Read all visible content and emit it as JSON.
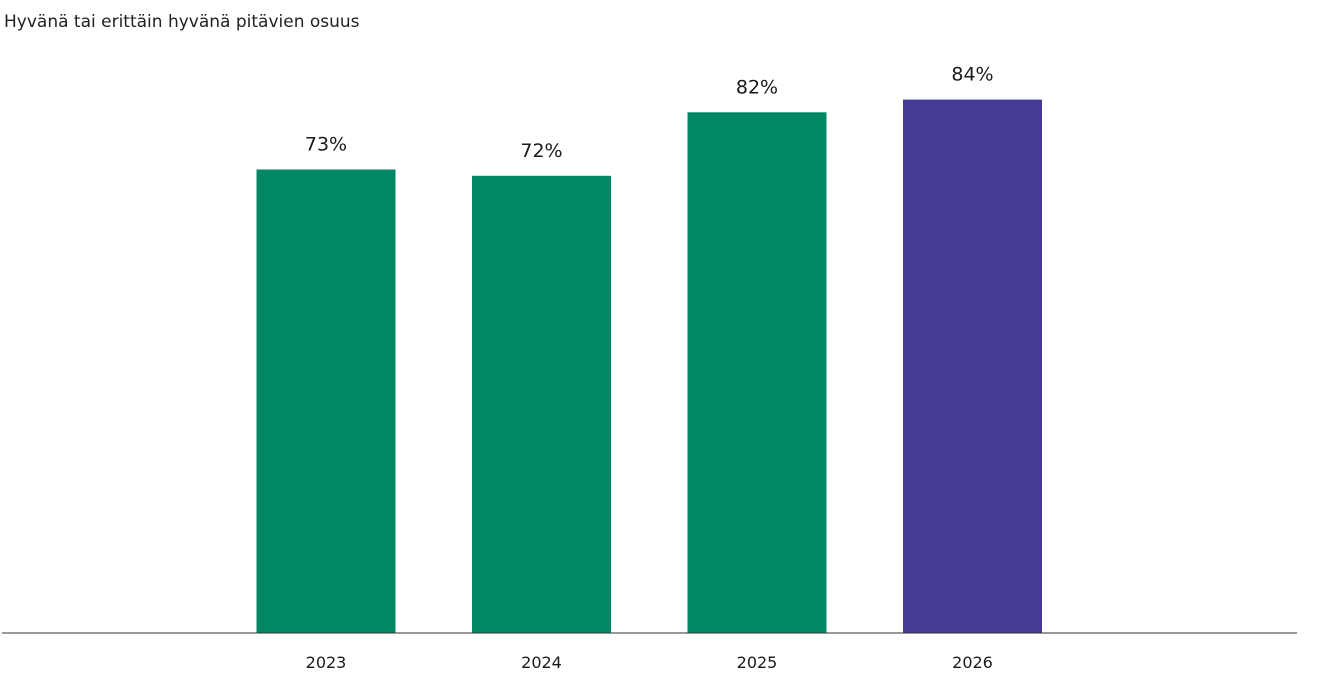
{
  "chart_data": {
    "type": "bar",
    "title": "Hyvänä tai erittäin hyvänä pitävien osuus",
    "categories": [
      "2023",
      "2024",
      "2025",
      "2026"
    ],
    "values": [
      73,
      72,
      82,
      84
    ],
    "value_labels": [
      "73%",
      "72%",
      "82%",
      "84%"
    ],
    "unit": "%",
    "xlabel": "",
    "ylabel": "",
    "ylim": [
      0,
      100
    ],
    "grid": false,
    "legend": "none",
    "colors": [
      "#008864",
      "#008864",
      "#008864",
      "#453A94"
    ],
    "axis_color": "#333333"
  }
}
